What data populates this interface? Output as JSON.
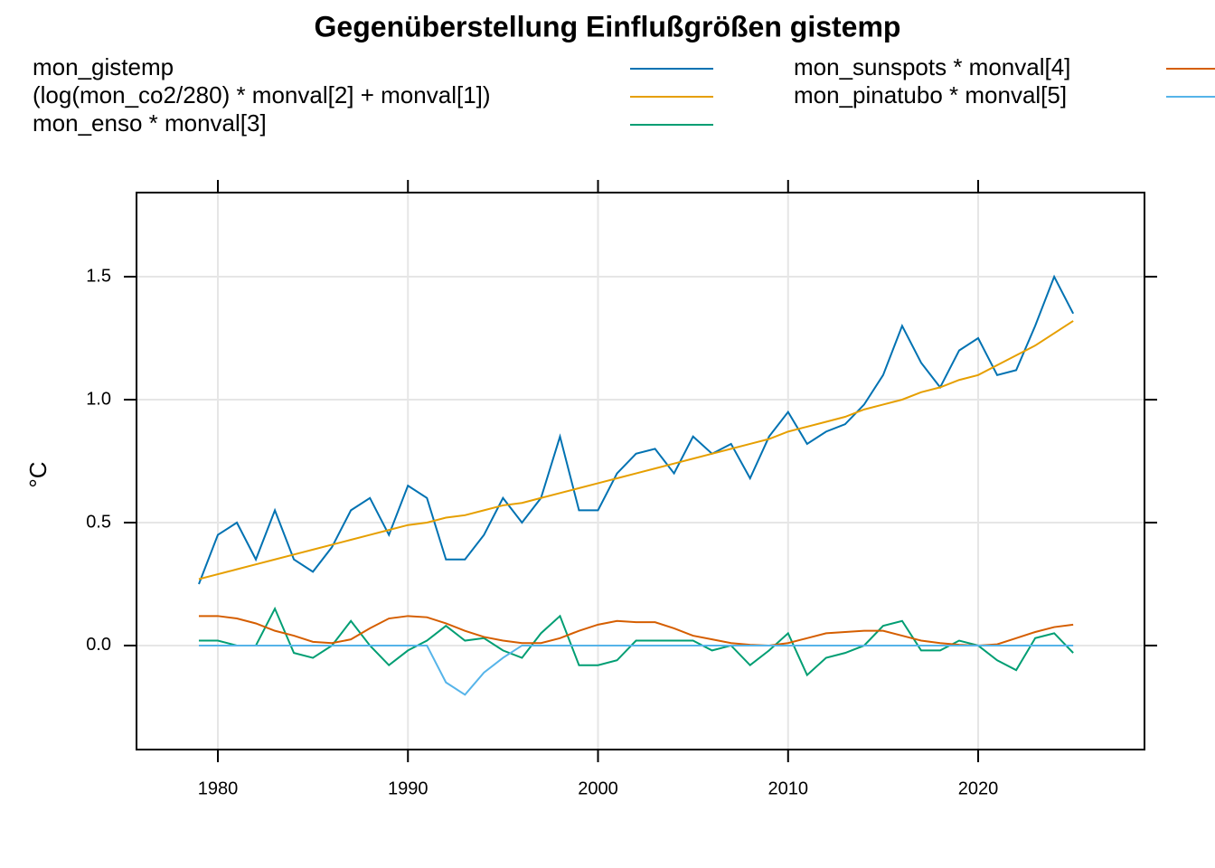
{
  "chart_data": {
    "type": "line",
    "title": "Gegenüberstellung Einflußgrößen gistemp",
    "y_label": "°C",
    "x": [
      1979,
      1980,
      1981,
      1982,
      1983,
      1984,
      1985,
      1986,
      1987,
      1988,
      1989,
      1990,
      1991,
      1992,
      1993,
      1994,
      1995,
      1996,
      1997,
      1998,
      1999,
      2000,
      2001,
      2002,
      2003,
      2004,
      2005,
      2006,
      2007,
      2008,
      2009,
      2010,
      2011,
      2012,
      2013,
      2014,
      2015,
      2016,
      2017,
      2018,
      2019,
      2020,
      2021,
      2022,
      2023,
      2024,
      2025
    ],
    "series": [
      {
        "name": "mon_gistemp",
        "color": "#0072B2",
        "values": [
          0.25,
          0.45,
          0.5,
          0.35,
          0.55,
          0.35,
          0.3,
          0.4,
          0.55,
          0.6,
          0.45,
          0.65,
          0.6,
          0.35,
          0.35,
          0.45,
          0.6,
          0.5,
          0.6,
          0.85,
          0.55,
          0.55,
          0.7,
          0.78,
          0.8,
          0.7,
          0.85,
          0.78,
          0.82,
          0.68,
          0.85,
          0.95,
          0.82,
          0.87,
          0.9,
          0.98,
          1.1,
          1.3,
          1.15,
          1.05,
          1.2,
          1.25,
          1.1,
          1.12,
          1.3,
          1.5,
          1.35
        ]
      },
      {
        "name": "(log(mon_co2/280) * monval[2] + monval[1])",
        "color": "#E69F00",
        "values": [
          0.27,
          0.29,
          0.31,
          0.33,
          0.35,
          0.37,
          0.39,
          0.41,
          0.43,
          0.45,
          0.47,
          0.49,
          0.5,
          0.52,
          0.53,
          0.55,
          0.57,
          0.58,
          0.6,
          0.62,
          0.64,
          0.66,
          0.68,
          0.7,
          0.72,
          0.74,
          0.76,
          0.78,
          0.8,
          0.82,
          0.84,
          0.87,
          0.89,
          0.91,
          0.93,
          0.96,
          0.98,
          1.0,
          1.03,
          1.05,
          1.08,
          1.1,
          1.14,
          1.18,
          1.22,
          1.27,
          1.32
        ]
      },
      {
        "name": "mon_enso * monval[3]",
        "color": "#009E73",
        "values": [
          0.02,
          0.02,
          0.0,
          0.0,
          0.15,
          -0.03,
          -0.05,
          0.0,
          0.1,
          0.0,
          -0.08,
          -0.02,
          0.02,
          0.08,
          0.02,
          0.03,
          -0.02,
          -0.05,
          0.05,
          0.12,
          -0.08,
          -0.08,
          -0.06,
          0.02,
          0.02,
          0.02,
          0.02,
          -0.02,
          0.0,
          -0.08,
          -0.02,
          0.05,
          -0.12,
          -0.05,
          -0.03,
          0.0,
          0.08,
          0.1,
          -0.02,
          -0.02,
          0.02,
          0.0,
          -0.06,
          -0.1,
          0.03,
          0.05,
          -0.03
        ]
      },
      {
        "name": "mon_sunspots * monval[4]",
        "color": "#D55E00",
        "values": [
          0.12,
          0.12,
          0.11,
          0.09,
          0.06,
          0.04,
          0.015,
          0.01,
          0.025,
          0.07,
          0.11,
          0.12,
          0.115,
          0.09,
          0.06,
          0.035,
          0.02,
          0.01,
          0.01,
          0.03,
          0.06,
          0.085,
          0.1,
          0.095,
          0.095,
          0.07,
          0.04,
          0.025,
          0.01,
          0.003,
          0.0,
          0.01,
          0.03,
          0.05,
          0.055,
          0.06,
          0.06,
          0.04,
          0.02,
          0.01,
          0.003,
          0.0,
          0.005,
          0.03,
          0.055,
          0.075,
          0.085
        ]
      },
      {
        "name": "mon_pinatubo * monval[5]",
        "color": "#56B4E9",
        "values": [
          0,
          0,
          0,
          0,
          0,
          0,
          0,
          0,
          0,
          0,
          0,
          0,
          0,
          -0.15,
          -0.2,
          -0.11,
          -0.05,
          0,
          0,
          0,
          0,
          0,
          0,
          0,
          0,
          0,
          0,
          0,
          0,
          0,
          0,
          0,
          0,
          0,
          0,
          0,
          0,
          0,
          0,
          0,
          0,
          0,
          0,
          0,
          0,
          0,
          0
        ]
      }
    ],
    "xlim": [
      1975.72,
      2028.75
    ],
    "ylim": [
      -0.423,
      1.842
    ],
    "xticks": [
      1980,
      1990,
      2000,
      2010,
      2020
    ],
    "yticks": [
      {
        "value": 0,
        "label": "0.0"
      },
      0.5,
      {
        "value": 1,
        "label": "1.0"
      },
      1.5
    ],
    "grid": true
  }
}
